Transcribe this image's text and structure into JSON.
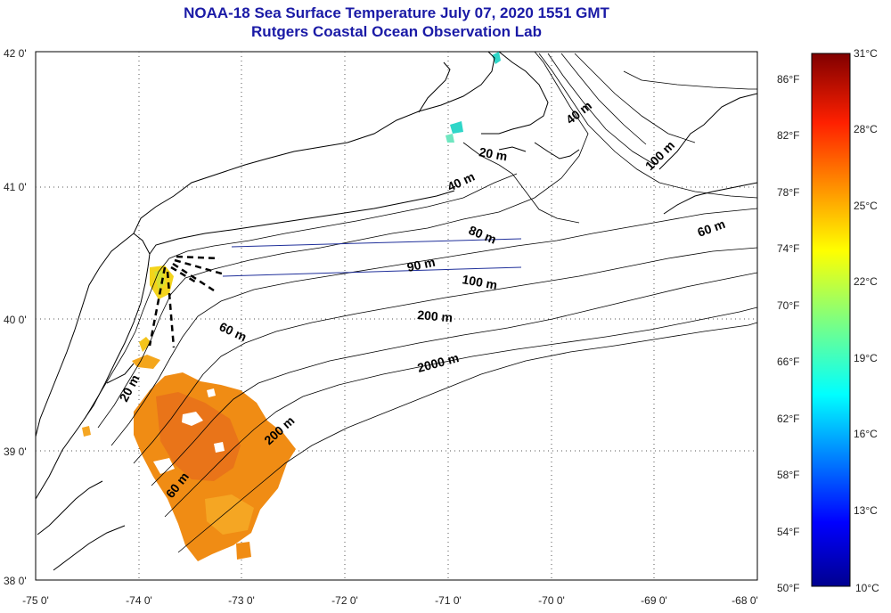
{
  "title": "NOAA-18 Sea Surface Temperature July 07, 2020 1551 GMT",
  "subtitle": "Rutgers Coastal Ocean Observation Lab",
  "axes": {
    "longitude_labels": [
      "-75 0'",
      "-74 0'",
      "-73 0'",
      "-72 0'",
      "-71 0'",
      "-70 0'",
      "-69 0'",
      "-68 0'"
    ],
    "latitude_labels": [
      "42 0'",
      "41 0'",
      "40 0'",
      "39 0'",
      "38 0'"
    ],
    "lon_range": [
      -75,
      -68
    ],
    "lat_range": [
      38,
      42
    ],
    "grid": "dotted"
  },
  "colorbar": {
    "celsius_labels": [
      "31°C",
      "28°C",
      "25°C",
      "22°C",
      "19°C",
      "16°C",
      "13°C",
      "10°C"
    ],
    "fahrenheit_labels": [
      "86°F",
      "82°F",
      "78°F",
      "74°F",
      "70°F",
      "66°F",
      "62°F",
      "58°F",
      "54°F",
      "50°F"
    ],
    "range_celsius": [
      10,
      31
    ],
    "colormap": "jet"
  },
  "isobaths": [
    "20 m",
    "40 m",
    "60 m",
    "80 m",
    "90 m",
    "100 m",
    "200 m",
    "2000 m"
  ],
  "isobath_labels": [
    {
      "text": "40 m"
    },
    {
      "text": "100 m"
    },
    {
      "text": "20 m"
    },
    {
      "text": "40 m"
    },
    {
      "text": "80 m"
    },
    {
      "text": "60 m"
    },
    {
      "text": "90 m"
    },
    {
      "text": "100 m"
    },
    {
      "text": "200 m"
    },
    {
      "text": "60 m"
    },
    {
      "text": "2000 m"
    },
    {
      "text": "20 m"
    },
    {
      "text": "200 m"
    },
    {
      "text": "60 m"
    }
  ],
  "colors": {
    "title": "#1a1aa6",
    "sst_warm": "#f08c14",
    "sst_cool": "#2fd6c8",
    "sst_mid": "#f4d41c",
    "transect": "#1f2f9a"
  }
}
